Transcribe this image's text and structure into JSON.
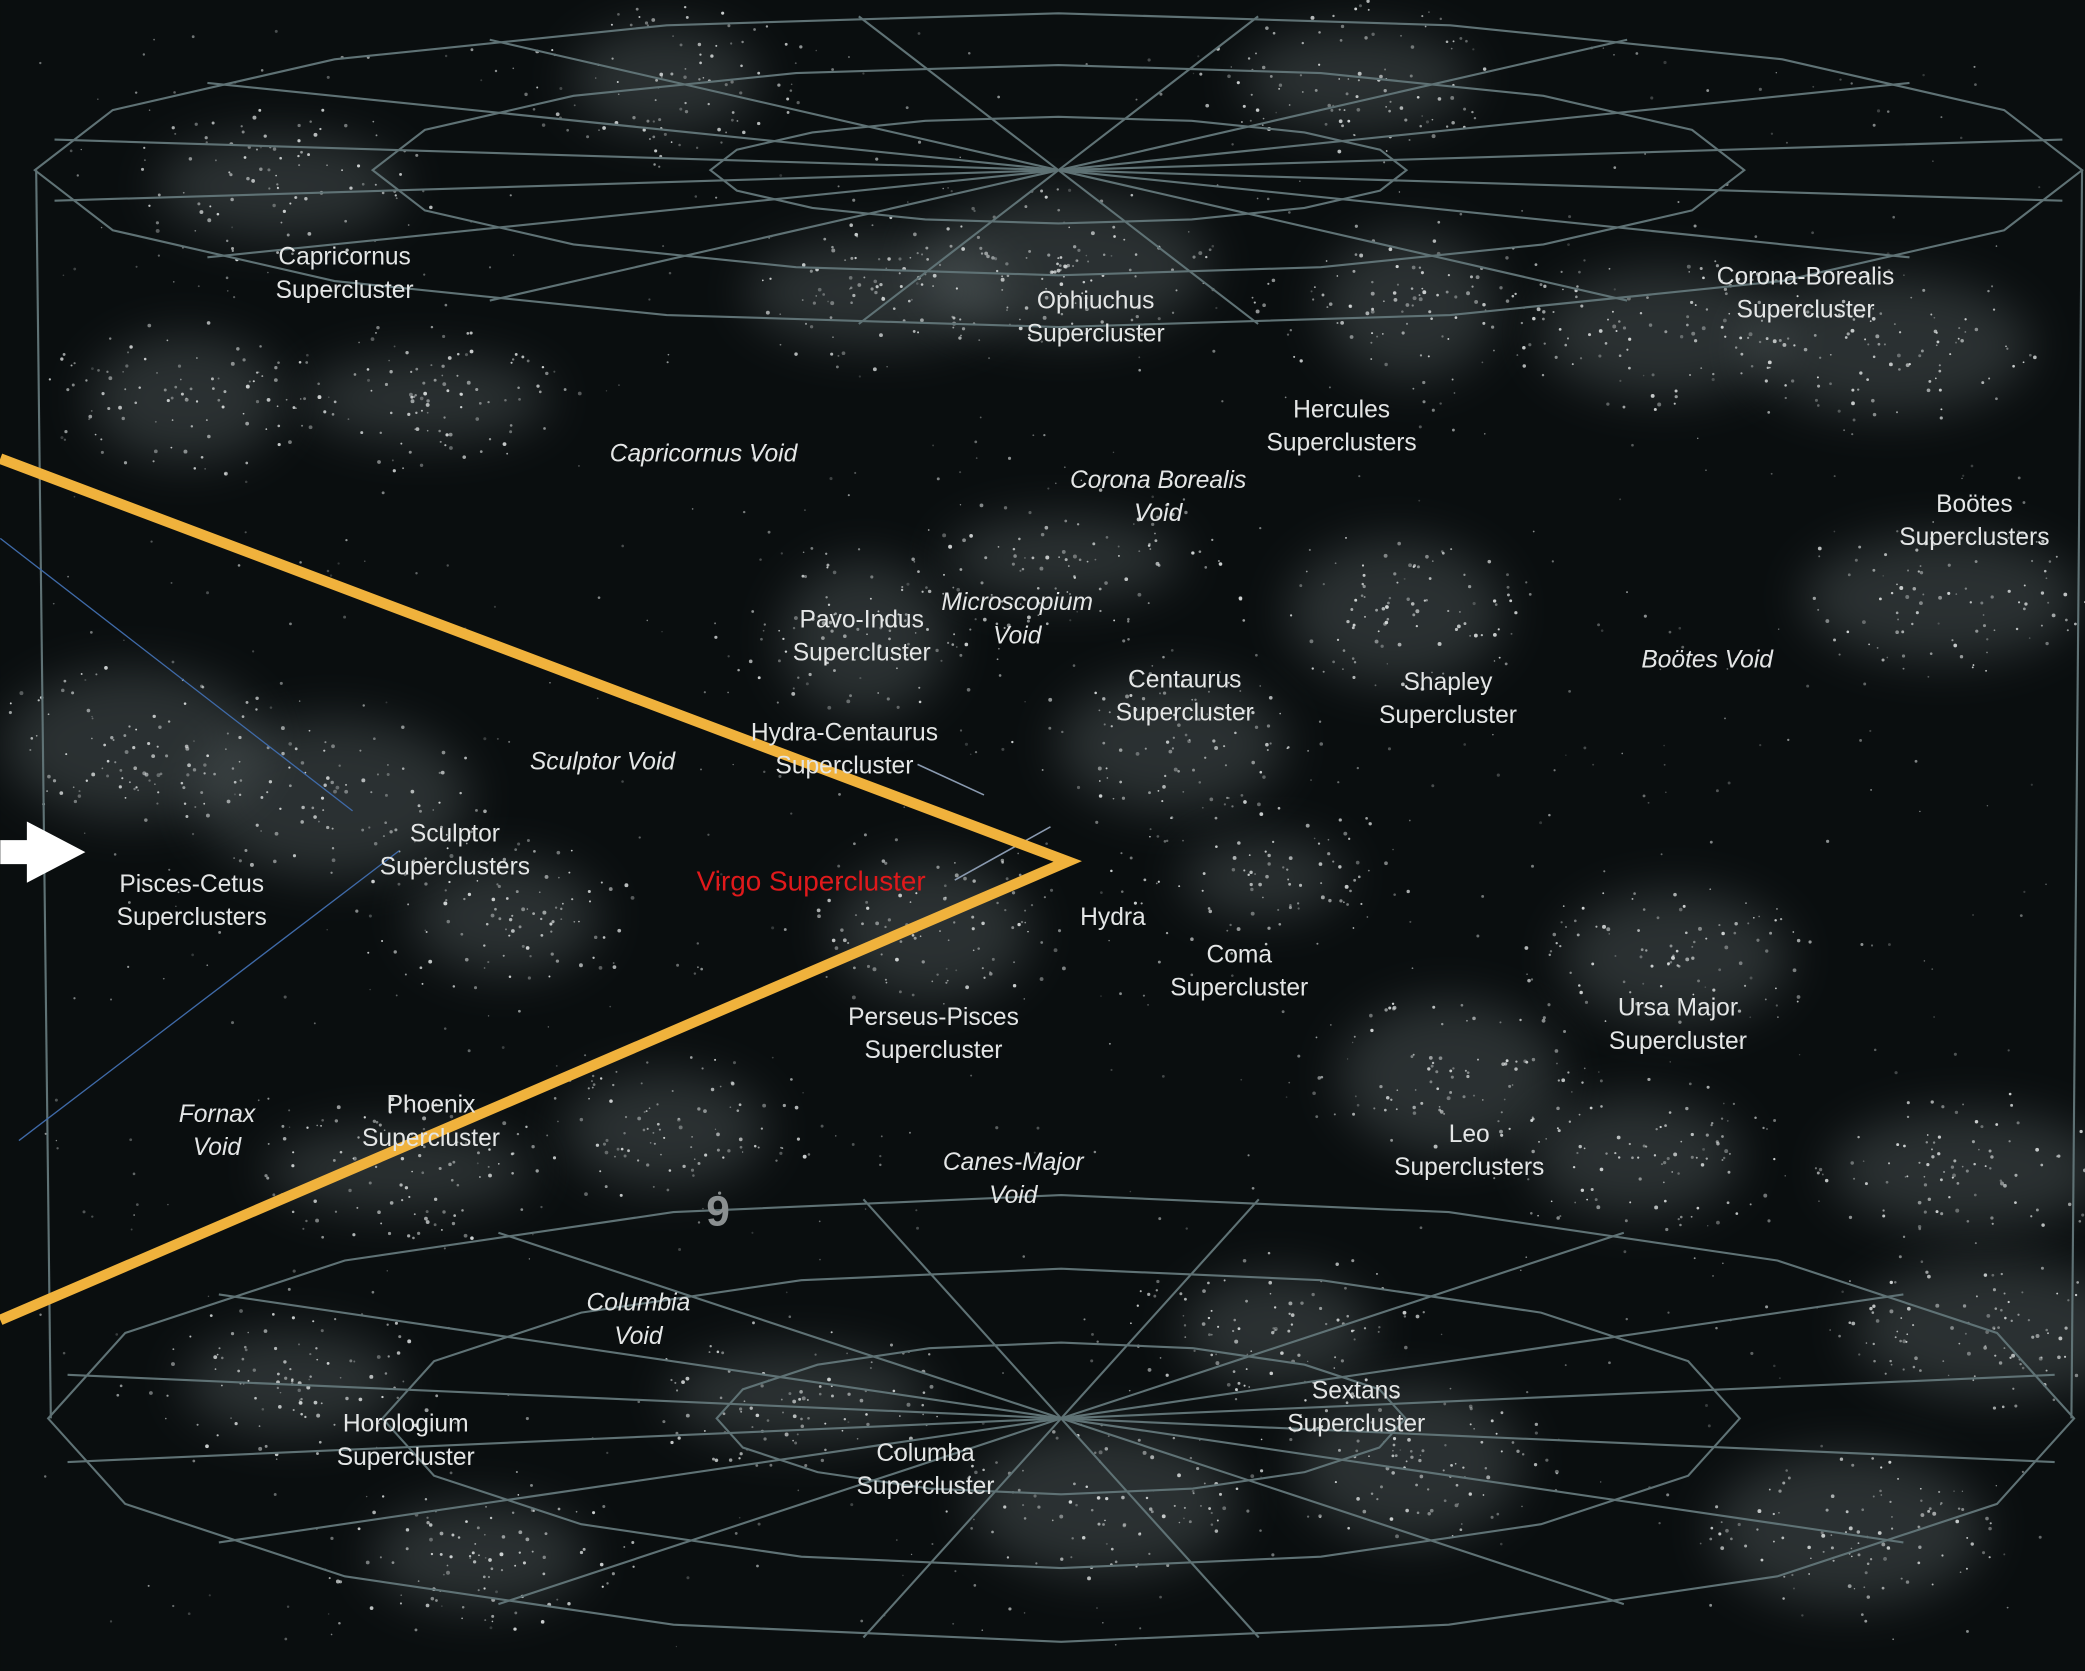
{
  "labels": [
    {
      "lines": [
        "Capricornus",
        "Supercluster"
      ]
    },
    {
      "lines": [
        "Ophiuchus",
        "Supercluster"
      ]
    },
    {
      "lines": [
        "Corona-Borealis",
        "Supercluster"
      ]
    },
    {
      "lines": [
        "Hercules",
        "Superclusters"
      ]
    },
    {
      "lines": [
        "Capricornus Void"
      ]
    },
    {
      "lines": [
        "Corona Borealis",
        "Void"
      ]
    },
    {
      "lines": [
        "Boötes",
        "Superclusters"
      ]
    },
    {
      "lines": [
        "Microscopium",
        "Void"
      ]
    },
    {
      "lines": [
        "Pavo-Indus",
        "Supercluster"
      ]
    },
    {
      "lines": [
        "Boötes Void"
      ]
    },
    {
      "lines": [
        "Centaurus",
        "Supercluster"
      ]
    },
    {
      "lines": [
        "Shapley",
        "Supercluster"
      ]
    },
    {
      "lines": [
        "Hydra-Centaurus",
        "Supercluster"
      ]
    },
    {
      "lines": [
        "Sculptor Void"
      ]
    },
    {
      "lines": [
        "Sculptor",
        "Superclusters"
      ]
    },
    {
      "lines": [
        "Pisces-Cetus",
        "Superclusters"
      ]
    },
    {
      "lines": [
        "Virgo Supercluster"
      ]
    },
    {
      "lines": [
        "Hydra"
      ]
    },
    {
      "lines": [
        "Coma",
        "Supercluster"
      ]
    },
    {
      "lines": [
        "Ursa Major",
        "Supercluster"
      ]
    },
    {
      "lines": [
        "Perseus-Pisces",
        "Supercluster"
      ]
    },
    {
      "lines": [
        "Fornax",
        "Void"
      ]
    },
    {
      "lines": [
        "Phoenix",
        "Supercluster"
      ]
    },
    {
      "lines": [
        "Leo",
        "Superclusters"
      ]
    },
    {
      "lines": [
        "Canes-Major",
        "Void"
      ]
    },
    {
      "lines": [
        "Columbia",
        "Void"
      ]
    },
    {
      "lines": [
        "Horologium",
        "Supercluster"
      ]
    },
    {
      "lines": [
        "Sextans",
        "Supercluster"
      ]
    },
    {
      "lines": [
        "Columba",
        "Supercluster"
      ]
    }
  ],
  "marker": "9"
}
